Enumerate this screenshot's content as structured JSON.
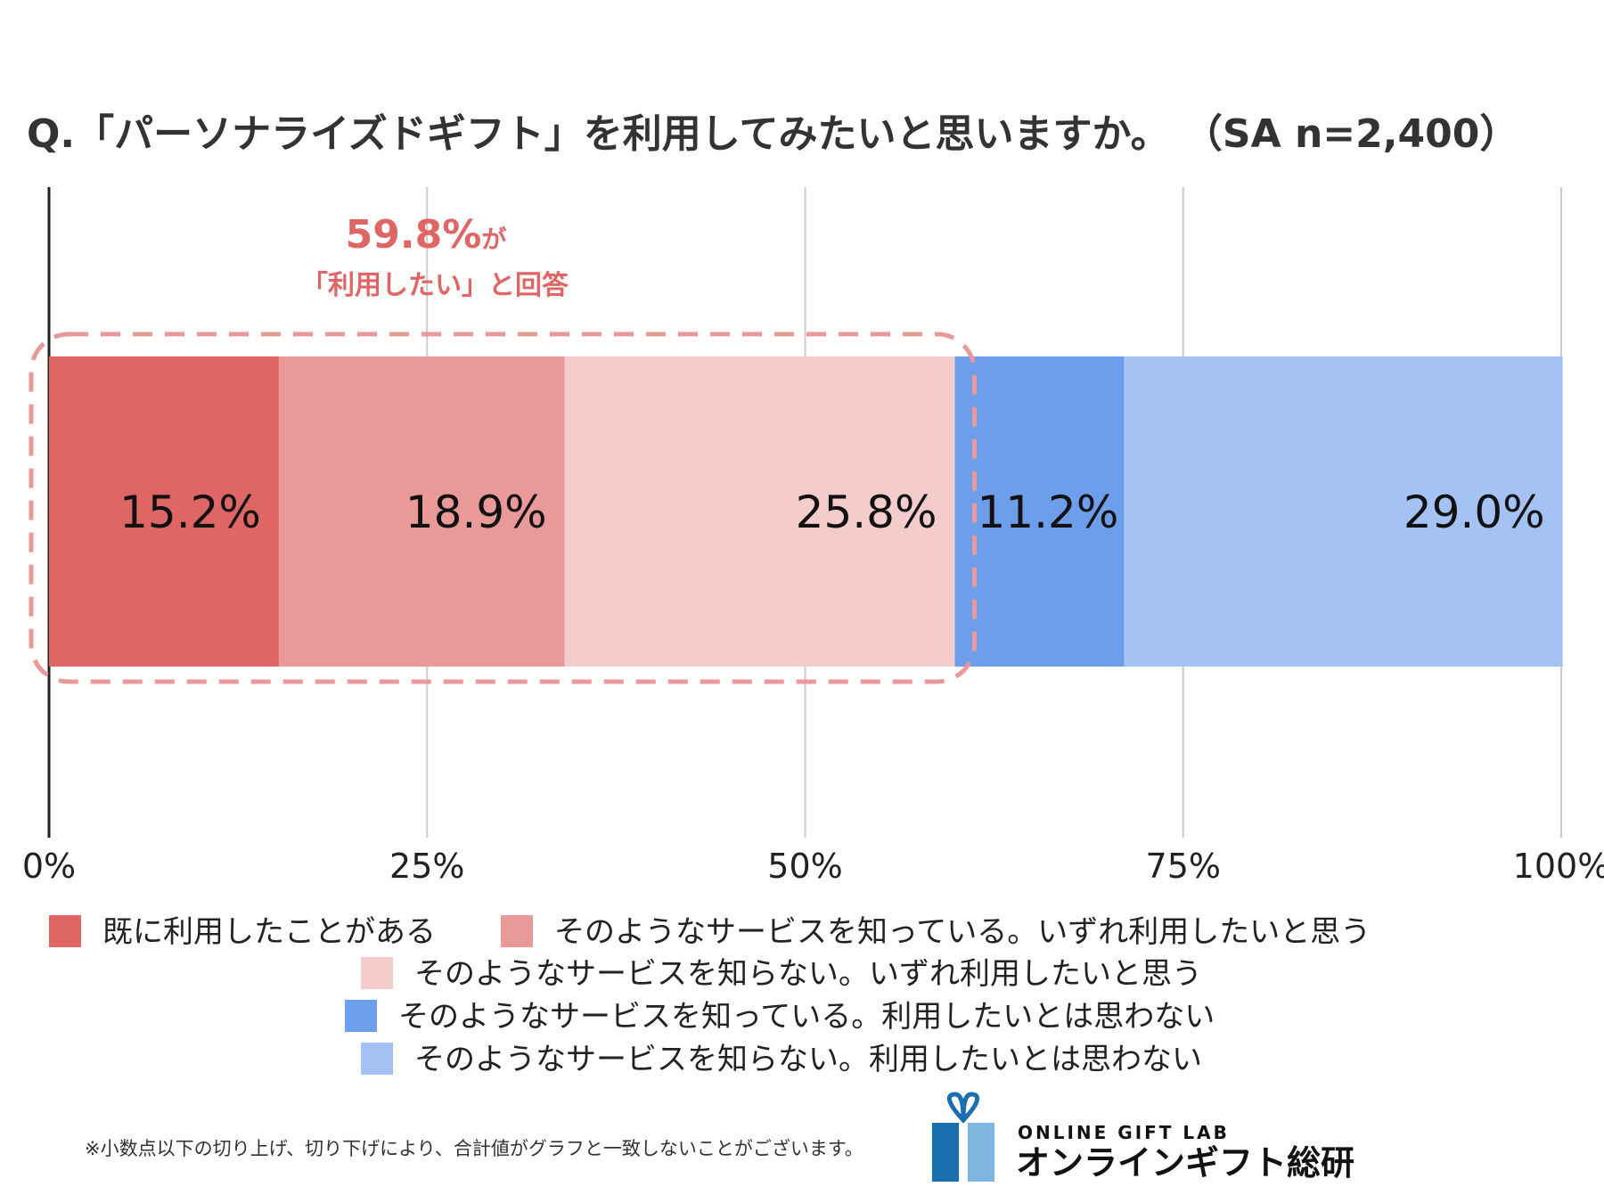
{
  "title": "Q.「パーソナライズドギフト」を利用してみたいと思いますか。 （SA n=2,400）",
  "colors": {
    "seg1": "#E06666",
    "seg2": "#EA9999",
    "seg3": "#F4CCCC",
    "seg4": "#6D9EEB",
    "seg5": "#A4C2F4",
    "callout": "#E06666",
    "grid": "#cccccc"
  },
  "callout": {
    "main": "59.8%",
    "suffix": "が",
    "sub": "「利用したい」と回答"
  },
  "chart_data": {
    "type": "bar",
    "orientation": "horizontal",
    "stacked": true,
    "xlim": [
      0,
      100
    ],
    "ticks": [
      0,
      25,
      50,
      75,
      100
    ],
    "tick_labels": [
      "0%",
      "25%",
      "50%",
      "75%",
      "100%"
    ],
    "grid": true,
    "legend_position": "bottom",
    "series": [
      {
        "name": "既に利用したことがある",
        "value": 15.2,
        "label": "15.2%",
        "color_key": "seg1"
      },
      {
        "name": "そのようなサービスを知っている。いずれ利用したいと思う",
        "value": 18.9,
        "label": "18.9%",
        "color_key": "seg2"
      },
      {
        "name": "そのようなサービスを知らない。いずれ利用したいと思う",
        "value": 25.8,
        "label": "25.8%",
        "color_key": "seg3"
      },
      {
        "name": "そのようなサービスを知っている。利用したいとは思わない",
        "value": 11.2,
        "label": "11.2%",
        "color_key": "seg4"
      },
      {
        "name": "そのようなサービスを知らない。利用したいとは思わない",
        "value": 29.0,
        "label": "29.0%",
        "color_key": "seg5"
      }
    ]
  },
  "note": "※小数点以下の切り上げ、切り下げにより、合計値がグラフと一致しないことがございます。",
  "brand": {
    "en": "ONLINE GIFT LAB",
    "jp": "オンラインギフト総研",
    "color_dark": "#1A6FB0",
    "color_light": "#7FB6E0"
  }
}
